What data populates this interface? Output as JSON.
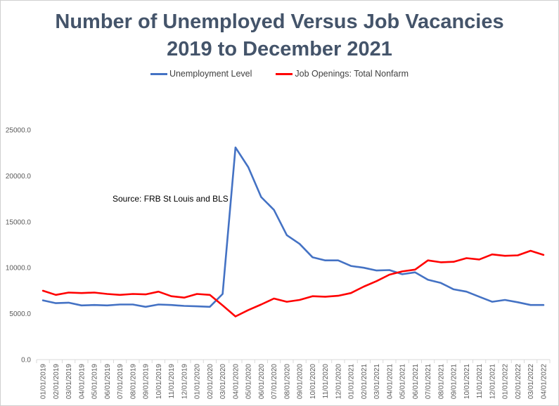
{
  "chart_data": {
    "type": "line",
    "title_line1": "Number of Unemployed Versus Job Vacancies",
    "title_line2": "2019 to December 2021",
    "annotation": "Source: FRB St Louis and BLS",
    "ylim": [
      0,
      25000
    ],
    "yticks": [
      0,
      5000,
      10000,
      15000,
      20000,
      25000
    ],
    "ytick_labels": [
      "0.0",
      "5000.0",
      "10000.0",
      "15000.0",
      "20000.0",
      "25000.0"
    ],
    "grid": false,
    "legend_position": "top-center",
    "categories": [
      "01/01/2019",
      "02/01/2019",
      "03/01/2019",
      "04/01/2019",
      "05/01/2019",
      "06/01/2019",
      "07/01/2019",
      "08/01/2019",
      "09/01/2019",
      "10/01/2019",
      "11/01/2019",
      "12/01/2019",
      "01/01/2020",
      "02/01/2020",
      "03/01/2020",
      "04/01/2020",
      "05/01/2020",
      "06/01/2020",
      "07/01/2020",
      "08/01/2020",
      "09/01/2020",
      "10/01/2020",
      "11/01/2020",
      "12/01/2020",
      "01/01/2021",
      "02/01/2021",
      "03/01/2021",
      "04/01/2021",
      "05/01/2021",
      "06/01/2021",
      "07/01/2021",
      "08/01/2021",
      "09/01/2021",
      "10/01/2021",
      "11/01/2021",
      "12/01/2021",
      "01/01/2022",
      "02/01/2022",
      "03/01/2022",
      "04/01/2022"
    ],
    "series": [
      {
        "name": "Unemployment Level",
        "color": "#4472c4",
        "values": [
          6450,
          6150,
          6200,
          5900,
          5950,
          5900,
          6000,
          6000,
          5750,
          6000,
          5950,
          5850,
          5800,
          5750,
          7150,
          23100,
          20950,
          17700,
          16300,
          13550,
          12600,
          11150,
          10800,
          10800,
          10200,
          10000,
          9700,
          9750,
          9300,
          9500,
          8700,
          8350,
          7650,
          7400,
          6850,
          6300,
          6500,
          6250,
          5950,
          5950
        ]
      },
      {
        "name": "Job Openings: Total Nonfarm",
        "color": "#ff0000",
        "values": [
          7500,
          7050,
          7300,
          7250,
          7300,
          7150,
          7050,
          7150,
          7100,
          7400,
          6900,
          6750,
          7150,
          7050,
          5900,
          4700,
          5400,
          6000,
          6650,
          6300,
          6500,
          6900,
          6850,
          6950,
          7250,
          7950,
          8550,
          9250,
          9600,
          9800,
          10800,
          10600,
          10650,
          11050,
          10900,
          11450,
          11300,
          11350,
          11850,
          11400
        ]
      }
    ]
  }
}
